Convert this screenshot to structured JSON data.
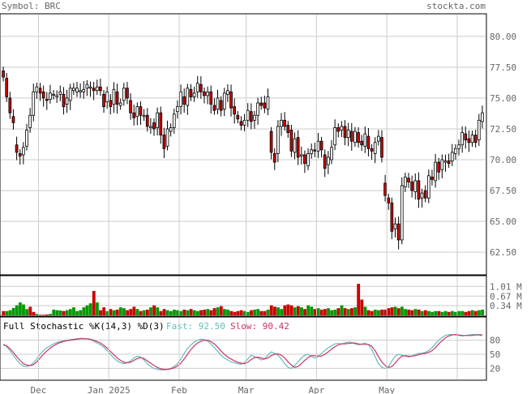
{
  "header": {
    "symbol": "Symbol: BRC",
    "site": "stockta.com"
  },
  "price_axis": {
    "ticks": [
      "80.00",
      "77.50",
      "75.00",
      "72.50",
      "70.00",
      "67.50",
      "65.00",
      "62.50"
    ]
  },
  "volume_axis": {
    "ticks": [
      "1.01 M",
      "0.67 M",
      "0.34 M"
    ]
  },
  "stoch": {
    "label": "Full Stochastic %K(14,3) %D(3)",
    "fast_label": "Fast: 92.50",
    "slow_label": "Slow: 90.42",
    "ticks": [
      "80",
      "50",
      "20"
    ]
  },
  "x_axis": {
    "labels": [
      "Dec",
      "Jan 2025",
      "Feb",
      "Mar",
      "Apr",
      "May"
    ]
  },
  "colors": {
    "up": "#ffffff",
    "down": "#cc0000",
    "vol_up": "#009900",
    "vol_down": "#cc0000",
    "fast": "#66bbbb",
    "slow": "#cc3366",
    "grid": "#cccccc"
  },
  "chart_data": [
    {
      "type": "candlestick",
      "title": "Symbol: BRC",
      "ylim": [
        61.0,
        81.5
      ],
      "categories": [
        "Dec",
        "Jan 2025",
        "Feb",
        "Mar",
        "Apr",
        "May"
      ],
      "close": [
        76.7,
        75.1,
        73.8,
        73.0,
        70.6,
        70.3,
        71.0,
        72.4,
        73.6,
        75.5,
        75.9,
        75.4,
        75.0,
        74.8,
        75.4,
        75.3,
        75.2,
        75.5,
        74.3,
        75.0,
        75.8,
        75.8,
        75.8,
        75.6,
        75.7,
        76.1,
        75.9,
        75.6,
        75.9,
        75.6,
        74.3,
        75.5,
        74.3,
        75.7,
        74.5,
        74.6,
        75.8,
        75.0,
        73.8,
        73.4,
        74.3,
        73.6,
        73.6,
        72.7,
        72.7,
        72.5,
        73.8,
        72.0,
        70.9,
        72.5,
        72.6,
        73.7,
        74.3,
        75.5,
        74.5,
        75.8,
        75.1,
        75.4,
        76.2,
        75.5,
        75.2,
        75.5,
        74.5,
        74.0,
        75.0,
        74.0,
        75.4,
        75.6,
        74.2,
        73.7,
        73.3,
        72.8,
        73.2,
        74.0,
        73.1,
        73.6,
        74.6,
        74.4,
        74.2,
        75.1,
        70.6,
        69.8,
        72.7,
        73.2,
        72.7,
        72.2,
        70.7,
        71.7,
        70.2,
        70.4,
        69.7,
        70.5,
        70.8,
        70.7,
        71.5,
        70.8,
        69.3,
        70.2,
        71.0,
        72.6,
        72.3,
        72.7,
        71.8,
        72.4,
        71.5,
        72.3,
        71.4,
        71.2,
        72.1,
        70.9,
        70.7,
        71.4,
        71.9,
        70.2,
        67.1,
        66.5,
        64.2,
        64.8,
        63.5,
        67.9,
        68.6,
        68.2,
        67.5,
        68.3,
        66.8,
        67.3,
        66.9,
        68.7,
        68.4,
        69.8,
        69.0,
        70.0,
        69.9,
        69.7,
        70.6,
        70.9,
        71.2,
        72.2,
        71.6,
        71.4,
        72.0,
        71.4,
        73.2,
        73.8
      ],
      "open": [
        77.2,
        76.6,
        75.0,
        73.5,
        71.2,
        70.5,
        70.4,
        71.1,
        72.6,
        73.6,
        75.5,
        75.8,
        75.5,
        74.9,
        74.9,
        75.3,
        75.1,
        75.3,
        75.3,
        74.5,
        74.8,
        75.6,
        75.5,
        75.5,
        75.5,
        75.8,
        75.8,
        75.8,
        75.6,
        75.9,
        75.3,
        74.7,
        74.8,
        74.5,
        75.5,
        74.4,
        74.8,
        75.8,
        74.8,
        73.8,
        73.5,
        74.3,
        73.5,
        73.6,
        72.6,
        73.0,
        72.6,
        73.8,
        72.0,
        71.1,
        72.3,
        72.6,
        73.9,
        74.3,
        75.1,
        74.4,
        75.7,
        75.1,
        75.5,
        76.1,
        75.5,
        75.2,
        75.5,
        74.4,
        74.1,
        74.8,
        74.1,
        75.3,
        75.5,
        74.3,
        73.6,
        73.1,
        72.8,
        73.2,
        73.9,
        73.2,
        73.6,
        74.6,
        74.6,
        74.1,
        72.3,
        70.5,
        70.5,
        72.7,
        73.2,
        72.8,
        72.4,
        70.6,
        71.8,
        70.3,
        70.4,
        69.5,
        70.5,
        70.8,
        70.7,
        71.5,
        70.4,
        69.6,
        70.0,
        71.2,
        72.6,
        72.4,
        72.7,
        71.8,
        72.3,
        71.4,
        72.2,
        71.5,
        71.1,
        71.9,
        70.9,
        70.5,
        71.5,
        71.8,
        68.1,
        66.9,
        66.5,
        64.4,
        64.8,
        63.5,
        67.8,
        68.5,
        68.2,
        67.4,
        68.3,
        66.9,
        67.5,
        66.9,
        68.6,
        68.3,
        69.8,
        69.2,
        69.8,
        69.9,
        69.9,
        70.5,
        70.9,
        71.2,
        72.1,
        71.7,
        71.4,
        72.0,
        71.6,
        73.1
      ]
    },
    {
      "type": "bar",
      "title": "Volume",
      "ylim": [
        0,
        1.3
      ],
      "values": [
        0.15,
        0.15,
        0.18,
        0.26,
        0.35,
        0.45,
        0.38,
        0.22,
        0.3,
        0.12,
        0.05,
        0.02,
        0.02,
        0.03,
        0.05,
        0.2,
        0.18,
        0.17,
        0.15,
        0.18,
        0.22,
        0.28,
        0.15,
        0.18,
        0.28,
        0.35,
        0.42,
        0.85,
        0.45,
        0.18,
        0.28,
        0.15,
        0.22,
        0.18,
        0.2,
        0.28,
        0.25,
        0.18,
        0.22,
        0.3,
        0.22,
        0.15,
        0.18,
        0.2,
        0.28,
        0.35,
        0.28,
        0.15,
        0.22,
        0.18,
        0.15,
        0.2,
        0.18,
        0.15,
        0.2,
        0.18,
        0.22,
        0.18,
        0.15,
        0.18,
        0.2,
        0.22,
        0.18,
        0.25,
        0.28,
        0.32,
        0.22,
        0.2,
        0.15,
        0.12,
        0.15,
        0.18,
        0.15,
        0.12,
        0.18,
        0.2,
        0.22,
        0.15,
        0.15,
        0.2,
        0.35,
        0.3,
        0.28,
        0.22,
        0.35,
        0.38,
        0.35,
        0.28,
        0.32,
        0.28,
        0.22,
        0.35,
        0.3,
        0.22,
        0.25,
        0.2,
        0.22,
        0.25,
        0.18,
        0.2,
        0.25,
        0.35,
        0.25,
        0.22,
        0.25,
        0.28,
        1.1,
        0.55,
        0.3,
        0.18,
        0.15,
        0.2,
        0.18,
        0.2,
        0.2,
        0.25,
        0.28,
        0.3,
        0.25,
        0.3,
        0.22,
        0.2,
        0.18,
        0.22,
        0.2,
        0.15,
        0.18,
        0.15,
        0.12,
        0.15,
        0.15,
        0.12,
        0.15,
        0.12,
        0.15,
        0.12,
        0.15,
        0.15,
        0.12,
        0.15,
        0.18,
        0.15,
        0.18,
        0.2
      ],
      "up": [
        false,
        true,
        true,
        true,
        true,
        true,
        true,
        true,
        false,
        false,
        true,
        false,
        false,
        false,
        true,
        true,
        true,
        true,
        false,
        true,
        true,
        true,
        true,
        true,
        true,
        true,
        true,
        false,
        true,
        false,
        false,
        true,
        false,
        true,
        false,
        true,
        true,
        false,
        false,
        false,
        true,
        false,
        true,
        false,
        true,
        false,
        true,
        false,
        false,
        true,
        true,
        true,
        true,
        true,
        false,
        true,
        false,
        true,
        true,
        false,
        false,
        true,
        false,
        false,
        true,
        false,
        true,
        true,
        false,
        false,
        false,
        false,
        true,
        true,
        false,
        true,
        true,
        false,
        false,
        true,
        false,
        false,
        true,
        true,
        false,
        false,
        false,
        true,
        false,
        true,
        false,
        true,
        true,
        false,
        true,
        false,
        false,
        true,
        true,
        true,
        false,
        true,
        false,
        true,
        false,
        true,
        false,
        false,
        true,
        false,
        false,
        true,
        true,
        false,
        false,
        false,
        false,
        true,
        false,
        true,
        true,
        false,
        false,
        true,
        false,
        true,
        false,
        true,
        true,
        true,
        false,
        true,
        true,
        false,
        true,
        true,
        true,
        true,
        false,
        false,
        true,
        false,
        true,
        true
      ]
    },
    {
      "type": "line",
      "title": "Full Stochastic %K(14,3) %D(3)",
      "ylim": [
        0,
        100
      ],
      "series": [
        {
          "name": "Fast",
          "values": [
            72,
            66,
            58,
            48,
            38,
            30,
            25,
            24,
            26,
            32,
            40,
            50,
            58,
            64,
            68,
            72,
            75,
            77,
            79,
            80,
            81,
            82,
            83,
            84,
            84,
            83,
            81,
            78,
            74,
            70,
            65,
            58,
            50,
            42,
            36,
            32,
            30,
            32,
            36,
            42,
            46,
            44,
            38,
            30,
            24,
            20,
            18,
            17,
            17,
            18,
            20,
            24,
            30,
            40,
            52,
            62,
            70,
            76,
            80,
            82,
            81,
            78,
            72,
            64,
            56,
            48,
            42,
            38,
            34,
            32,
            30,
            29,
            32,
            40,
            48,
            45,
            42,
            38,
            40,
            48,
            55,
            52,
            48,
            40,
            30,
            22,
            20,
            26,
            34,
            42,
            48,
            50,
            45,
            42,
            45,
            52,
            58,
            64,
            68,
            72,
            73,
            72,
            74,
            76,
            75,
            72,
            70,
            72,
            74,
            70,
            60,
            45,
            30,
            22,
            20,
            24,
            36,
            46,
            50,
            48,
            46,
            44,
            46,
            50,
            52,
            52,
            54,
            58,
            64,
            72,
            80,
            86,
            90,
            92,
            92,
            91,
            90,
            89,
            90,
            91,
            92,
            92,
            92,
            92
          ]
        },
        {
          "name": "Slow",
          "values": [
            70,
            68,
            62,
            54,
            45,
            37,
            30,
            27,
            26,
            28,
            34,
            42,
            50,
            57,
            63,
            68,
            72,
            75,
            77,
            79,
            80,
            81,
            82,
            83,
            83,
            83,
            82,
            80,
            77,
            74,
            69,
            63,
            56,
            49,
            42,
            37,
            33,
            32,
            33,
            37,
            41,
            43,
            41,
            36,
            31,
            26,
            22,
            19,
            18,
            18,
            19,
            21,
            25,
            31,
            40,
            50,
            60,
            68,
            74,
            78,
            80,
            80,
            77,
            72,
            65,
            57,
            50,
            44,
            40,
            36,
            33,
            31,
            30,
            33,
            39,
            43,
            44,
            42,
            40,
            42,
            47,
            50,
            51,
            48,
            42,
            34,
            27,
            22,
            24,
            30,
            37,
            43,
            47,
            47,
            46,
            46,
            50,
            55,
            61,
            66,
            70,
            72,
            72,
            73,
            74,
            74,
            72,
            71,
            71,
            71,
            67,
            58,
            45,
            34,
            26,
            22,
            24,
            31,
            40,
            46,
            47,
            46,
            46,
            47,
            49,
            51,
            52,
            54,
            58,
            64,
            72,
            79,
            85,
            89,
            91,
            92,
            91,
            90,
            90,
            90,
            90,
            91,
            91,
            90
          ]
        }
      ]
    }
  ]
}
